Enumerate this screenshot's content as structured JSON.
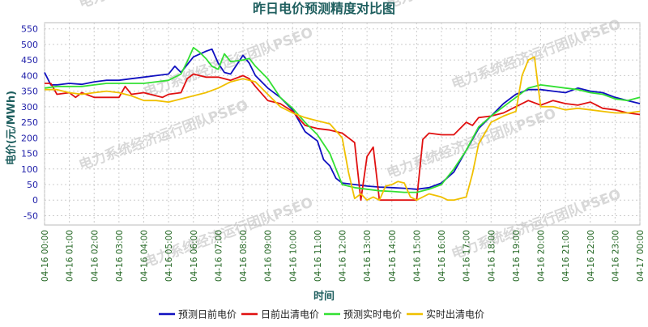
{
  "chart_data": {
    "type": "line",
    "title": "昨日电价预测精度对比图",
    "xlabel": "时间",
    "ylabel": "电价(元/MWh)",
    "ylim": [
      -80,
      570
    ],
    "yticks": [
      -50,
      0,
      50,
      100,
      150,
      200,
      250,
      300,
      350,
      400,
      450,
      500,
      550
    ],
    "xticks": [
      "04-16 00:00",
      "04-16 01:00",
      "04-16 02:00",
      "04-16 03:00",
      "04-16 04:00",
      "04-16 05:00",
      "04-16 06:00",
      "04-16 07:00",
      "04-16 08:00",
      "04-16 09:00",
      "04-16 10:00",
      "04-16 11:00",
      "04-16 12:00",
      "04-16 13:00",
      "04-16 14:00",
      "04-16 15:00",
      "04-16 16:00",
      "04-16 17:00",
      "04-16 18:00",
      "04-16 19:00",
      "04-16 20:00",
      "04-16 21:00",
      "04-16 22:00",
      "04-16 23:00",
      "04-17 00:00"
    ],
    "grid": true,
    "legend_position": "bottom",
    "watermark": "电力系统经济运行团队PSEO",
    "series": [
      {
        "name": "预测日前电价",
        "color": "#1010c0",
        "points": [
          [
            0,
            410
          ],
          [
            0.25,
            370
          ],
          [
            0.5,
            370
          ],
          [
            1,
            375
          ],
          [
            1.5,
            372
          ],
          [
            2,
            380
          ],
          [
            2.5,
            385
          ],
          [
            3,
            385
          ],
          [
            3.5,
            390
          ],
          [
            4,
            395
          ],
          [
            4.5,
            400
          ],
          [
            5,
            405
          ],
          [
            5.25,
            430
          ],
          [
            5.5,
            410
          ],
          [
            6,
            460
          ],
          [
            6.5,
            478
          ],
          [
            6.75,
            485
          ],
          [
            7,
            440
          ],
          [
            7.25,
            410
          ],
          [
            7.5,
            405
          ],
          [
            8,
            465
          ],
          [
            8.25,
            440
          ],
          [
            8.5,
            400
          ],
          [
            9,
            360
          ],
          [
            9.5,
            330
          ],
          [
            10,
            290
          ],
          [
            10.5,
            220
          ],
          [
            11,
            190
          ],
          [
            11.25,
            130
          ],
          [
            11.5,
            110
          ],
          [
            11.75,
            70
          ],
          [
            12,
            55
          ],
          [
            12.5,
            50
          ],
          [
            13,
            45
          ],
          [
            13.5,
            42
          ],
          [
            14,
            40
          ],
          [
            14.5,
            38
          ],
          [
            15,
            35
          ],
          [
            15.5,
            40
          ],
          [
            16,
            55
          ],
          [
            16.5,
            90
          ],
          [
            17,
            160
          ],
          [
            17.5,
            230
          ],
          [
            18,
            270
          ],
          [
            18.5,
            310
          ],
          [
            19,
            340
          ],
          [
            19.5,
            355
          ],
          [
            20,
            355
          ],
          [
            20.5,
            350
          ],
          [
            21,
            345
          ],
          [
            21.5,
            360
          ],
          [
            22,
            350
          ],
          [
            22.5,
            345
          ],
          [
            23,
            330
          ],
          [
            23.5,
            320
          ],
          [
            24,
            310
          ]
        ]
      },
      {
        "name": "日前出清电价",
        "color": "#e01010",
        "points": [
          [
            0,
            375
          ],
          [
            0.25,
            375
          ],
          [
            0.5,
            340
          ],
          [
            1,
            345
          ],
          [
            1.25,
            330
          ],
          [
            1.5,
            345
          ],
          [
            2,
            330
          ],
          [
            2.5,
            330
          ],
          [
            3,
            330
          ],
          [
            3.25,
            365
          ],
          [
            3.5,
            340
          ],
          [
            4,
            345
          ],
          [
            4.5,
            335
          ],
          [
            4.75,
            330
          ],
          [
            5,
            340
          ],
          [
            5.5,
            345
          ],
          [
            5.75,
            390
          ],
          [
            6,
            405
          ],
          [
            6.5,
            395
          ],
          [
            7,
            395
          ],
          [
            7.5,
            385
          ],
          [
            8,
            400
          ],
          [
            8.25,
            390
          ],
          [
            8.5,
            365
          ],
          [
            9,
            320
          ],
          [
            9.5,
            310
          ],
          [
            10,
            285
          ],
          [
            10.5,
            240
          ],
          [
            11,
            230
          ],
          [
            11.5,
            225
          ],
          [
            12,
            215
          ],
          [
            12.25,
            200
          ],
          [
            12.5,
            185
          ],
          [
            12.75,
            0
          ],
          [
            13,
            140
          ],
          [
            13.25,
            170
          ],
          [
            13.5,
            0
          ],
          [
            14,
            0
          ],
          [
            14.5,
            0
          ],
          [
            15,
            0
          ],
          [
            15.25,
            195
          ],
          [
            15.5,
            215
          ],
          [
            16,
            210
          ],
          [
            16.5,
            210
          ],
          [
            17,
            250
          ],
          [
            17.25,
            240
          ],
          [
            17.5,
            265
          ],
          [
            18,
            270
          ],
          [
            18.5,
            280
          ],
          [
            19,
            300
          ],
          [
            19.5,
            320
          ],
          [
            20,
            305
          ],
          [
            20.5,
            320
          ],
          [
            21,
            310
          ],
          [
            21.5,
            305
          ],
          [
            22,
            315
          ],
          [
            22.5,
            295
          ],
          [
            23,
            290
          ],
          [
            23.5,
            280
          ],
          [
            24,
            275
          ]
        ]
      },
      {
        "name": "预测实时电价",
        "color": "#33e033",
        "points": [
          [
            0,
            360
          ],
          [
            0.5,
            365
          ],
          [
            1,
            365
          ],
          [
            1.5,
            365
          ],
          [
            2,
            370
          ],
          [
            2.5,
            375
          ],
          [
            3,
            375
          ],
          [
            3.5,
            375
          ],
          [
            4,
            375
          ],
          [
            4.5,
            380
          ],
          [
            5,
            385
          ],
          [
            5.5,
            405
          ],
          [
            5.75,
            445
          ],
          [
            6,
            490
          ],
          [
            6.25,
            475
          ],
          [
            6.5,
            455
          ],
          [
            6.75,
            430
          ],
          [
            7,
            420
          ],
          [
            7.25,
            470
          ],
          [
            7.5,
            445
          ],
          [
            8,
            450
          ],
          [
            8.25,
            455
          ],
          [
            8.5,
            430
          ],
          [
            9,
            390
          ],
          [
            9.5,
            330
          ],
          [
            10,
            295
          ],
          [
            10.5,
            250
          ],
          [
            11,
            210
          ],
          [
            11.5,
            150
          ],
          [
            11.75,
            100
          ],
          [
            12,
            50
          ],
          [
            12.5,
            40
          ],
          [
            13,
            35
          ],
          [
            13.5,
            30
          ],
          [
            14,
            28
          ],
          [
            14.5,
            25
          ],
          [
            15,
            25
          ],
          [
            15.5,
            35
          ],
          [
            16,
            50
          ],
          [
            16.5,
            100
          ],
          [
            17,
            160
          ],
          [
            17.5,
            235
          ],
          [
            18,
            270
          ],
          [
            18.5,
            300
          ],
          [
            19,
            330
          ],
          [
            19.5,
            360
          ],
          [
            20,
            370
          ],
          [
            20.5,
            365
          ],
          [
            21,
            360
          ],
          [
            21.5,
            355
          ],
          [
            22,
            345
          ],
          [
            22.5,
            340
          ],
          [
            23,
            325
          ],
          [
            23.5,
            320
          ],
          [
            24,
            330
          ]
        ]
      },
      {
        "name": "实时出清电价",
        "color": "#f0c000",
        "points": [
          [
            0,
            355
          ],
          [
            0.5,
            355
          ],
          [
            1,
            345
          ],
          [
            1.5,
            340
          ],
          [
            2,
            345
          ],
          [
            2.5,
            350
          ],
          [
            3,
            345
          ],
          [
            3.5,
            335
          ],
          [
            4,
            320
          ],
          [
            4.5,
            320
          ],
          [
            5,
            315
          ],
          [
            5.5,
            325
          ],
          [
            6,
            335
          ],
          [
            6.5,
            345
          ],
          [
            7,
            360
          ],
          [
            7.5,
            380
          ],
          [
            8,
            390
          ],
          [
            8.5,
            380
          ],
          [
            9,
            340
          ],
          [
            9.5,
            300
          ],
          [
            10,
            280
          ],
          [
            10.5,
            265
          ],
          [
            11,
            255
          ],
          [
            11.5,
            245
          ],
          [
            12,
            200
          ],
          [
            12.25,
            90
          ],
          [
            12.5,
            5
          ],
          [
            12.75,
            20
          ],
          [
            13,
            0
          ],
          [
            13.25,
            10
          ],
          [
            13.5,
            0
          ],
          [
            13.75,
            45
          ],
          [
            14,
            50
          ],
          [
            14.25,
            60
          ],
          [
            14.5,
            55
          ],
          [
            14.75,
            10
          ],
          [
            15,
            0
          ],
          [
            15.5,
            20
          ],
          [
            16,
            10
          ],
          [
            16.25,
            0
          ],
          [
            16.5,
            0
          ],
          [
            17,
            10
          ],
          [
            17.25,
            85
          ],
          [
            17.5,
            180
          ],
          [
            18,
            250
          ],
          [
            18.5,
            270
          ],
          [
            19,
            285
          ],
          [
            19.25,
            400
          ],
          [
            19.5,
            450
          ],
          [
            19.75,
            460
          ],
          [
            20,
            300
          ],
          [
            20.5,
            300
          ],
          [
            21,
            290
          ],
          [
            21.5,
            295
          ],
          [
            22,
            290
          ],
          [
            22.5,
            285
          ],
          [
            23,
            280
          ],
          [
            23.5,
            280
          ],
          [
            24,
            285
          ]
        ]
      }
    ]
  }
}
